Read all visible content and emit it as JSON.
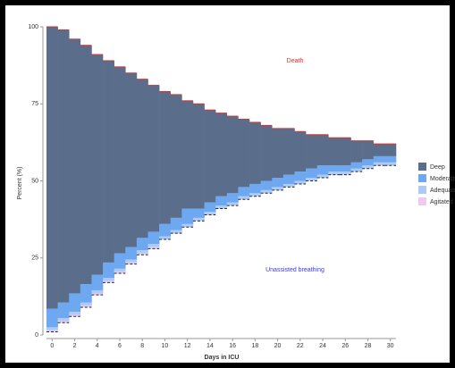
{
  "chart_data": {
    "type": "stacked-step",
    "x_label": "Days in ICU",
    "y_label": "Percent (%)",
    "x": [
      0,
      1,
      2,
      3,
      4,
      5,
      6,
      7,
      8,
      9,
      10,
      11,
      12,
      13,
      14,
      15,
      16,
      17,
      18,
      19,
      20,
      21,
      22,
      23,
      24,
      25,
      26,
      27,
      28,
      29,
      30
    ],
    "xlim": [
      -0.5,
      30.5
    ],
    "xticks": [
      0,
      2,
      4,
      6,
      8,
      10,
      12,
      14,
      16,
      18,
      20,
      22,
      24,
      26,
      28,
      30
    ],
    "ylim": [
      0,
      100
    ],
    "yticks": [
      0,
      25,
      50,
      75,
      100
    ],
    "unassisted": {
      "label": "Unassisted breathing",
      "color": "#3a3ae0",
      "values": [
        1,
        4,
        6,
        9,
        13,
        17,
        20,
        23,
        26,
        28,
        31,
        33,
        35,
        37,
        39,
        41,
        42,
        44,
        45,
        46,
        47,
        48,
        49,
        50,
        51,
        52,
        52,
        53,
        54,
        55,
        55
      ]
    },
    "death": {
      "label": "Death",
      "color": "#e03030"
    },
    "series": [
      {
        "name": "Deep",
        "color": "#5a6e8c",
        "values": [
          91.5,
          88.5,
          82.5,
          77.5,
          71.5,
          65.5,
          60.5,
          56.5,
          51.5,
          47.5,
          43,
          40,
          35,
          34,
          30,
          27,
          25,
          22,
          20,
          18,
          16,
          15,
          13,
          11,
          10,
          9,
          9,
          7,
          6,
          4,
          4
        ]
      },
      {
        "name": "Moderate",
        "color": "#6ea8f0",
        "values": [
          6,
          5,
          6,
          6,
          5,
          5,
          5,
          4,
          4,
          4,
          4,
          4,
          5,
          3,
          3,
          3,
          3,
          3,
          3,
          3,
          3,
          3,
          3,
          3,
          3,
          2,
          2,
          2,
          2,
          2,
          2
        ]
      },
      {
        "name": "Adequate",
        "color": "#aecbf5",
        "values": [
          1,
          1,
          1,
          1,
          1,
          1,
          1,
          1,
          1,
          1,
          1,
          1,
          1,
          1,
          1,
          1,
          1,
          1,
          1,
          1,
          1,
          1,
          1,
          1,
          1,
          1,
          1,
          1,
          1,
          1,
          1
        ]
      },
      {
        "name": "Agitated",
        "color": "#f0c8f0",
        "values": [
          0.5,
          0.5,
          0.5,
          0.5,
          0.5,
          0.5,
          0.5,
          0.5,
          0.5,
          0.5,
          0,
          0,
          0,
          0,
          0,
          0,
          0,
          0,
          0,
          0,
          0,
          0,
          0,
          0,
          0,
          0,
          0,
          0,
          0,
          0,
          0
        ]
      }
    ]
  }
}
